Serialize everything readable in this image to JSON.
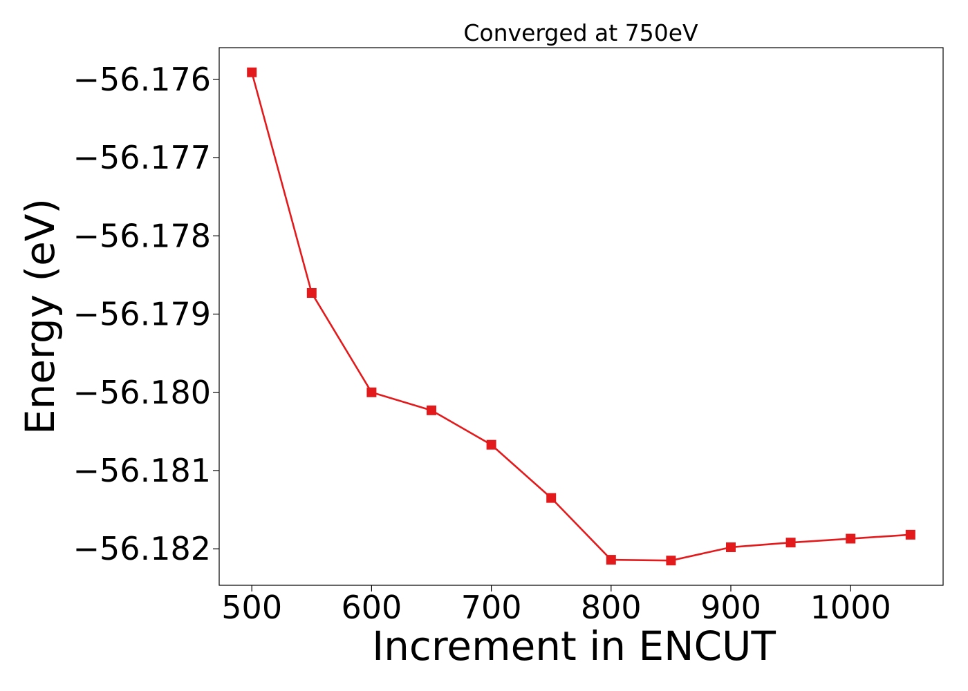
{
  "chart_data": {
    "type": "line",
    "title": "Converged at 750eV",
    "xlabel": "Increment in ENCUT",
    "ylabel": "Energy (eV)",
    "x": [
      500,
      550,
      600,
      650,
      700,
      750,
      800,
      850,
      900,
      950,
      1000,
      1050
    ],
    "series": [
      {
        "values": [
          -56.17591,
          -56.17873,
          -56.18,
          -56.18023,
          -56.18067,
          -56.18135,
          -56.18214,
          -56.18215,
          -56.18198,
          -56.18192,
          -56.18187,
          -56.18182
        ],
        "color": "#e31a1c",
        "marker": "square"
      }
    ],
    "xlim": [
      472.75,
      1077.25
    ],
    "ylim": [
      -56.182466,
      -56.175595
    ],
    "xticks": [
      500,
      600,
      700,
      800,
      900,
      1000
    ],
    "xtick_labels": [
      "500",
      "600",
      "700",
      "800",
      "900",
      "1000"
    ],
    "yticks": [
      -56.176,
      -56.177,
      -56.178,
      -56.179,
      -56.18,
      -56.181,
      -56.182
    ],
    "ytick_labels": [
      "−56.176",
      "−56.177",
      "−56.178",
      "−56.179",
      "−56.180",
      "−56.181",
      "−56.182"
    ],
    "grid": false,
    "legend": "none"
  }
}
